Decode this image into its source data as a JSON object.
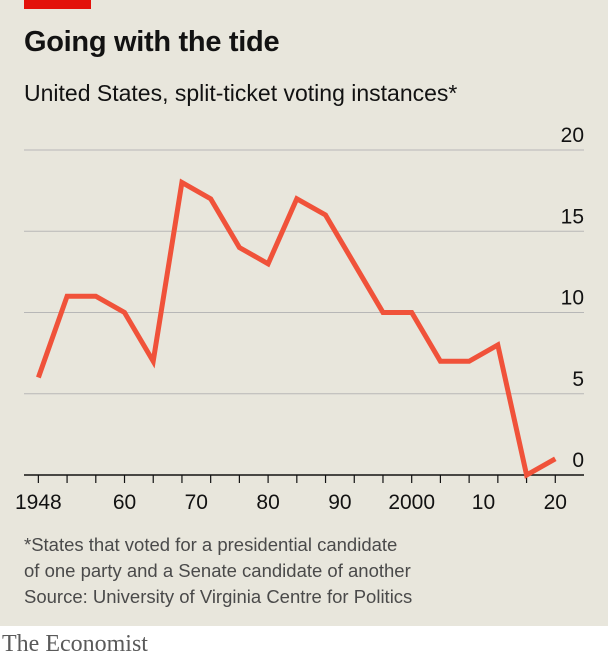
{
  "header": {
    "title": "Going with the tide",
    "subtitle": "United States, split-ticket voting instances*"
  },
  "footer": {
    "note": "*States that voted for a presidential candidate",
    "note_cont": "of one party and a Senate candidate of another",
    "source": "Source: University of Virginia Centre for Politics",
    "brand": "The Economist"
  },
  "colors": {
    "background": "#e8e6dc",
    "line": "#f0523a",
    "brand_red": "#e3120b",
    "gridline": "#b7b7b7"
  },
  "chart_data": {
    "type": "line",
    "x": [
      1948,
      1952,
      1956,
      1960,
      1964,
      1968,
      1972,
      1976,
      1980,
      1984,
      1988,
      1992,
      1996,
      2000,
      2004,
      2008,
      2012,
      2016,
      2020
    ],
    "series": [
      {
        "values": [
          6,
          11,
          11,
          10,
          7,
          18,
          17,
          14,
          13,
          17,
          16,
          13,
          10,
          10,
          7,
          7,
          8,
          0,
          1
        ]
      }
    ],
    "xlim": [
      1946,
      2024
    ],
    "ylim": [
      0,
      20
    ],
    "yticks": [
      0,
      5,
      10,
      15,
      20
    ],
    "xticks": [
      {
        "value": 1948,
        "label": "1948"
      },
      {
        "value": 1960,
        "label": "60"
      },
      {
        "value": 1970,
        "label": "70"
      },
      {
        "value": 1980,
        "label": "80"
      },
      {
        "value": 1990,
        "label": "90"
      },
      {
        "value": 2000,
        "label": "2000"
      },
      {
        "value": 2010,
        "label": "10"
      },
      {
        "value": 2020,
        "label": "20"
      }
    ],
    "grid": true,
    "yaxis_position": "right"
  }
}
